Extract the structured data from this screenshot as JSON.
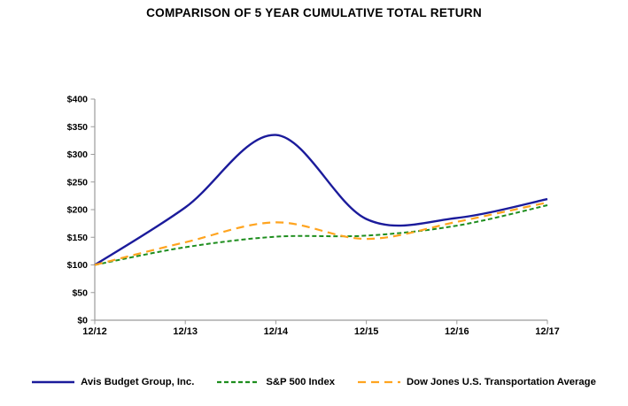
{
  "chart_data": {
    "type": "line",
    "title": "COMPARISON OF 5 YEAR CUMULATIVE TOTAL RETURN",
    "x_tick_labels": [
      "12/12",
      "12/13",
      "12/14",
      "12/15",
      "12/16",
      "12/17"
    ],
    "y_tick_labels": [
      "$0",
      "$50",
      "$100",
      "$150",
      "$200",
      "$250",
      "$300",
      "$350",
      "$400"
    ],
    "ylim": [
      0,
      400
    ],
    "y_tick_step": 50,
    "grid": false,
    "smooth_lines": true,
    "legend_position": "bottom",
    "axis_color": "#9b9b9b",
    "text_color": "#000000",
    "series": [
      {
        "name": "Avis Budget Group, Inc.",
        "color": "#1b1b9b",
        "line_style": "solid",
        "values": [
          100,
          204,
          335,
          183,
          185,
          219
        ]
      },
      {
        "name": "S&P 500 Index",
        "color": "#1e8e1e",
        "line_style": "short-dash",
        "values": [
          100,
          132,
          151,
          153,
          171,
          208
        ]
      },
      {
        "name": "Dow Jones U.S. Transportation Average",
        "color": "#ffa41f",
        "line_style": "long-dash",
        "values": [
          100,
          141,
          177,
          147,
          178,
          213
        ]
      }
    ]
  }
}
